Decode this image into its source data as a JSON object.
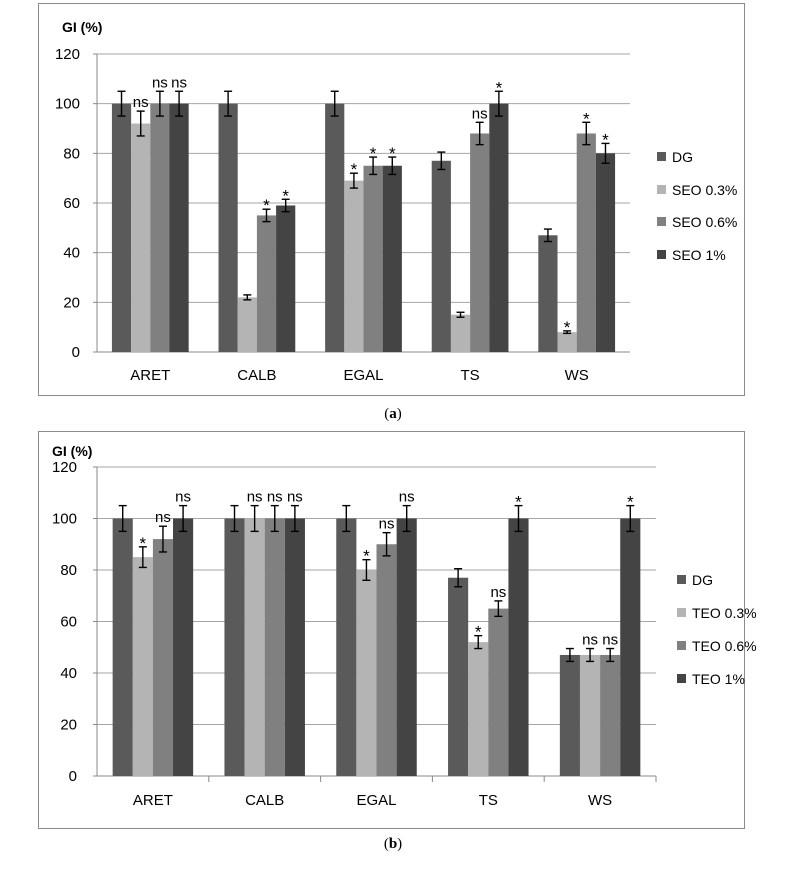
{
  "colors": {
    "DG": "#5a5a5a",
    "C03": "#b4b4b4",
    "C06": "#808080",
    "C1": "#444444",
    "grid": "#a6a6a6",
    "frame": "#8c8c8c",
    "text": "#000000"
  },
  "chart_data": [
    {
      "type": "bar",
      "panel_label": "(a)",
      "panel_letter": "a",
      "ylabel": "GI (%)",
      "ylim": [
        0,
        120
      ],
      "yticks": [
        0,
        20,
        40,
        60,
        80,
        100,
        120
      ],
      "grid": true,
      "legend_position": "right",
      "categories": [
        "ARET",
        "CALB",
        "EGAL",
        "TS",
        "WS"
      ],
      "series": [
        {
          "name": "DG",
          "values": [
            100,
            100,
            100,
            77,
            47
          ],
          "errors": [
            5,
            5,
            5,
            3.5,
            2.5
          ],
          "annotations": [
            "",
            "",
            "",
            "",
            ""
          ]
        },
        {
          "name": "SEO 0.3%",
          "values": [
            92,
            22,
            69,
            15,
            8
          ],
          "errors": [
            5,
            1,
            3,
            1,
            0.5
          ],
          "annotations": [
            "ns",
            "",
            "*",
            "",
            "*"
          ]
        },
        {
          "name": "SEO 0.6%",
          "values": [
            100,
            55,
            75,
            88,
            88
          ],
          "errors": [
            5,
            2.5,
            3.5,
            4.5,
            4.5
          ],
          "annotations": [
            "ns",
            "*",
            "*",
            "ns",
            "*"
          ]
        },
        {
          "name": "SEO 1%",
          "values": [
            100,
            59,
            75,
            100,
            80
          ],
          "errors": [
            5,
            2.5,
            3.5,
            5,
            4
          ],
          "annotations": [
            "ns",
            "*",
            "*",
            "*",
            "*"
          ]
        }
      ]
    },
    {
      "type": "bar",
      "panel_label": "(b)",
      "panel_letter": "b",
      "ylabel": "GI (%)",
      "ylim": [
        0,
        120
      ],
      "yticks": [
        0,
        20,
        40,
        60,
        80,
        100,
        120
      ],
      "grid": true,
      "legend_position": "right",
      "categories": [
        "ARET",
        "CALB",
        "EGAL",
        "TS",
        "WS"
      ],
      "series": [
        {
          "name": "DG",
          "values": [
            100,
            100,
            100,
            77,
            47
          ],
          "errors": [
            5,
            5,
            5,
            3.5,
            2.5
          ],
          "annotations": [
            "",
            "",
            "",
            "",
            ""
          ]
        },
        {
          "name": "TEO  0.3%",
          "values": [
            85,
            100,
            80,
            52,
            47
          ],
          "errors": [
            4,
            5,
            4,
            2.5,
            2.5
          ],
          "annotations": [
            "*",
            "ns",
            "*",
            "*",
            "ns"
          ]
        },
        {
          "name": "TEO 0.6%",
          "values": [
            92,
            100,
            90,
            65,
            47
          ],
          "errors": [
            5,
            5,
            4.5,
            3,
            2.5
          ],
          "annotations": [
            "ns",
            "ns",
            "ns",
            "ns",
            "ns"
          ]
        },
        {
          "name": "TEO  1%",
          "values": [
            100,
            100,
            100,
            100,
            100
          ],
          "errors": [
            5,
            5,
            5,
            5,
            5
          ],
          "annotations": [
            "ns",
            "ns",
            "ns",
            "*",
            "*"
          ]
        }
      ]
    }
  ]
}
